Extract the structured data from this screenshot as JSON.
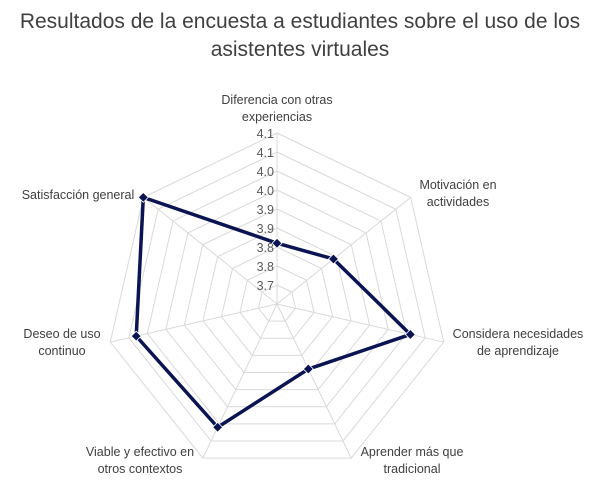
{
  "chart_data": {
    "type": "radar",
    "title": "Resultados de la encuesta a estudiantes sobre el uso de los asistentes virtuales",
    "categories": [
      [
        "Diferencia con otras",
        "experiencias"
      ],
      [
        "Motivación en",
        "actividades"
      ],
      [
        "Considera necesidades",
        "de aprendizaje"
      ],
      [
        "Aprender más que",
        "tradicional"
      ],
      [
        "Viable y efectivo en",
        "otros contextos"
      ],
      [
        "Deseo de uso",
        "continuo"
      ],
      [
        "Satisfacción general"
      ]
    ],
    "values": [
      3.81,
      3.84,
      4.01,
      3.84,
      4.01,
      4.03,
      4.1
    ],
    "rlim": [
      3.65,
      4.1
    ],
    "ticks": [
      3.7,
      3.75,
      3.8,
      3.85,
      3.9,
      3.95,
      4.0,
      4.05,
      4.1
    ],
    "tick_labels": [
      "3.7",
      "3.8",
      "3.8",
      "3.9",
      "3.9",
      "4.0",
      "4.0",
      "4.1",
      "4.1"
    ],
    "series_color": "#0b1452",
    "grid_color": "#d9d9d9"
  }
}
